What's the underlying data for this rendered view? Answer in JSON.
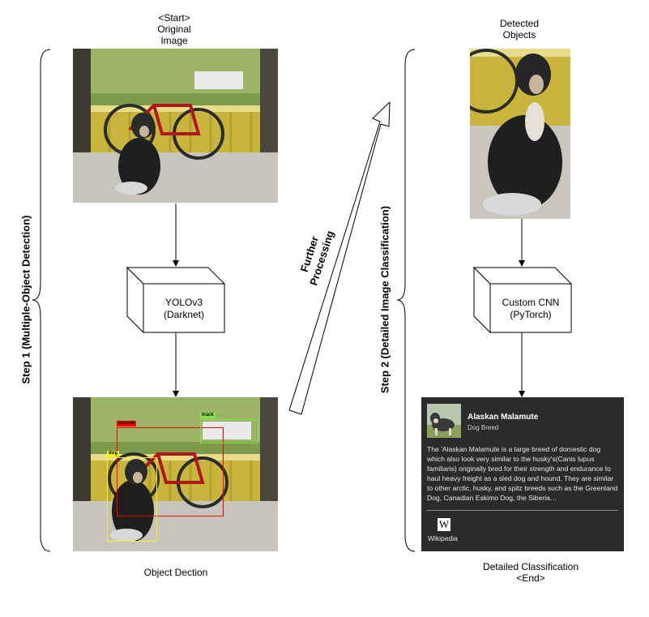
{
  "captions": {
    "start": "<Start>",
    "original_line1": "Original",
    "original_line2": "Image",
    "detected_line1": "Detected",
    "detected_line2": "Objects",
    "object_dection": "Object Dection",
    "detailed_line1": "Detailed Classification",
    "detailed_line2": "<End>"
  },
  "steps": {
    "step1": "Step 1 (Multiple-Object Detection)",
    "step2": "Step 2 (Detailed Image Classification)"
  },
  "further": {
    "line1": "Further",
    "line2": "Processing"
  },
  "models": {
    "yolo_line1": "YOLOv3",
    "yolo_line2": "(Darknet)",
    "cnn_line1": "Custom CNN",
    "cnn_line2": "(PyTorch)"
  },
  "detections": {
    "bicycle": "bicycle",
    "truck": "truck",
    "dog": "dog"
  },
  "card": {
    "title": "Alaskan Malamute",
    "subtitle": "Dog Breed",
    "body": "The 'Alaskan Malamute is a large breed of domestic dog which also look very similar to the husky's(Canis lupus familiaris) originally bred for their strength and endurance to haul heavy freight as a sled dog and hound. They are similar to other arctic, husky, and spitz breeds such as the Greenland Dog, Canadian Eskimo Dog, the Siberia…",
    "wiki_icon": "W",
    "wiki_label": "Wikipedia"
  },
  "colors": {
    "bicycle_box": "#ff0000",
    "truck_box": "#8ce34a",
    "dog_box": "#f2f21a",
    "card_bg": "#2b2b2b"
  }
}
